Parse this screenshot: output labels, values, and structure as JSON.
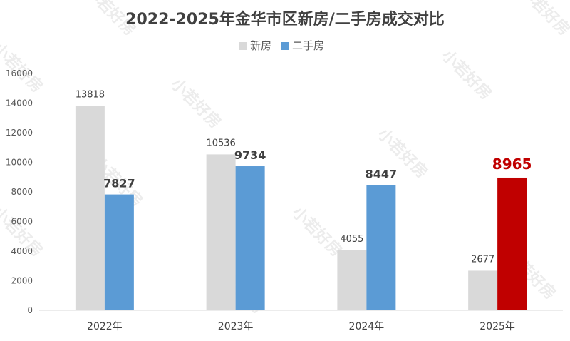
{
  "chart_data": {
    "type": "bar",
    "title": "2022-2025年金华市区新房/二手房成交对比",
    "categories": [
      "2022年",
      "2023年",
      "2024年",
      "2025年"
    ],
    "series": [
      {
        "name": "新房",
        "values": [
          13818,
          10536,
          4055,
          2677
        ],
        "color": "#d9d9d9"
      },
      {
        "name": "二手房",
        "values": [
          7827,
          9734,
          8447,
          8965
        ],
        "color": "#5b9bd5"
      }
    ],
    "highlight": {
      "series": 1,
      "index": 3,
      "color": "#c00000"
    },
    "ylim": [
      0,
      16000
    ],
    "yticks": [
      0,
      2000,
      4000,
      6000,
      8000,
      10000,
      12000,
      14000,
      16000
    ],
    "legend_position": "top",
    "grid": false,
    "watermark": "小若好房"
  }
}
